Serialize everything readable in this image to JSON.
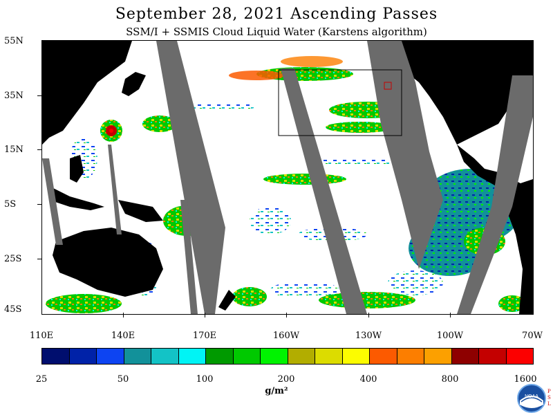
{
  "title": "September 28, 2021  Ascending Passes",
  "subtitle": "SSM/I + SSMIS Cloud Liquid Water (Karstens algorithm)",
  "latitude_labels": [
    "55N",
    "35N",
    "15N",
    "5S",
    "25S",
    "45S"
  ],
  "longitude_labels": [
    "110E",
    "140E",
    "170E",
    "160W",
    "130W",
    "100W",
    "70W"
  ],
  "colorbar": {
    "colors": [
      "#000e6e",
      "#0022a8",
      "#0d44f2",
      "#12919a",
      "#13c3c6",
      "#00f4f5",
      "#009a00",
      "#00c900",
      "#00f300",
      "#b2ad00",
      "#dcdc00",
      "#fcfc00",
      "#fc5a00",
      "#fc7e00",
      "#fca000",
      "#8e0000",
      "#c40000",
      "#fc0000"
    ],
    "tick_labels": [
      "25",
      "50",
      "100",
      "200",
      "400",
      "800",
      "1600"
    ],
    "unit": "g/m²"
  },
  "map": {
    "land_color": "#000000",
    "no_data_color": "#6b6b6b",
    "ocean_clear_color": "#ffffff"
  },
  "logo": {
    "text": "NOAA",
    "side_text": "P\nS\nL"
  }
}
